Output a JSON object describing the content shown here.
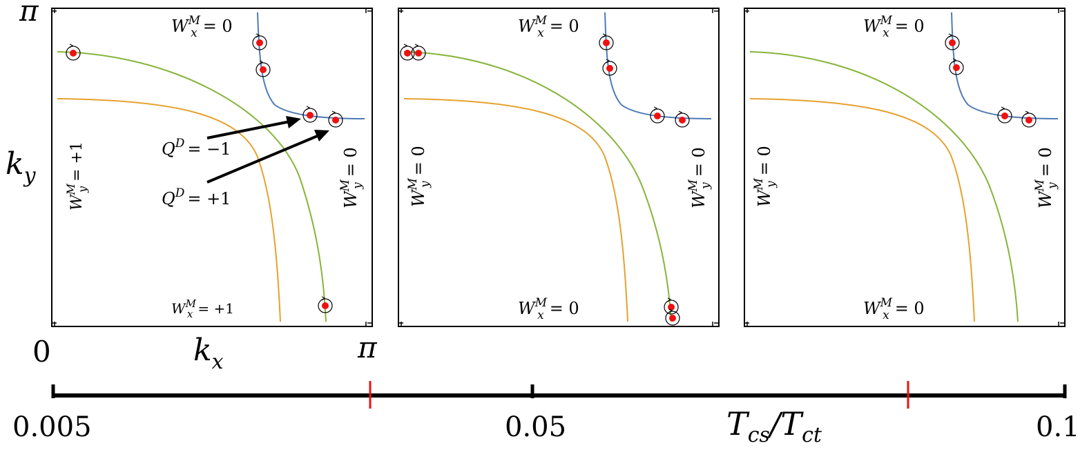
{
  "colors": {
    "blue": "#4d79b5",
    "green": "#86b43a",
    "orange": "#e6a12e",
    "point": "#ee1111",
    "tick_red": "#ee1111",
    "axis": "#000000"
  },
  "axes": {
    "y_top": "π",
    "y_label": "k",
    "y_label_sub": "y",
    "x_left": "0",
    "x_label": "k",
    "x_label_sub": "x",
    "x_right": "π"
  },
  "winding_text": {
    "W": "W",
    "sup": "M",
    "sub_x": "x",
    "sub_y": "y"
  },
  "panels": [
    {
      "wx_top": "= 0",
      "wx_bottom": "= +1",
      "wy_left": "= +1",
      "wy_right": "= 0"
    },
    {
      "wx_top": "= 0",
      "wx_bottom": "= 0",
      "wy_left": "= 0",
      "wy_right": "= 0"
    },
    {
      "wx_top": "= 0",
      "wx_bottom": "= 0",
      "wy_left": "= 0",
      "wy_right": "= 0"
    }
  ],
  "charges": {
    "Q": "Q",
    "sup": "D",
    "neg": "= −1",
    "pos": "= +1"
  },
  "scale": {
    "label_left": "0.005",
    "label_mid": "0.05",
    "label_right": "0.1",
    "ratio_T": "T",
    "ratio_cs": "cs",
    "ratio_slash": "/T",
    "ratio_ct": "ct"
  }
}
